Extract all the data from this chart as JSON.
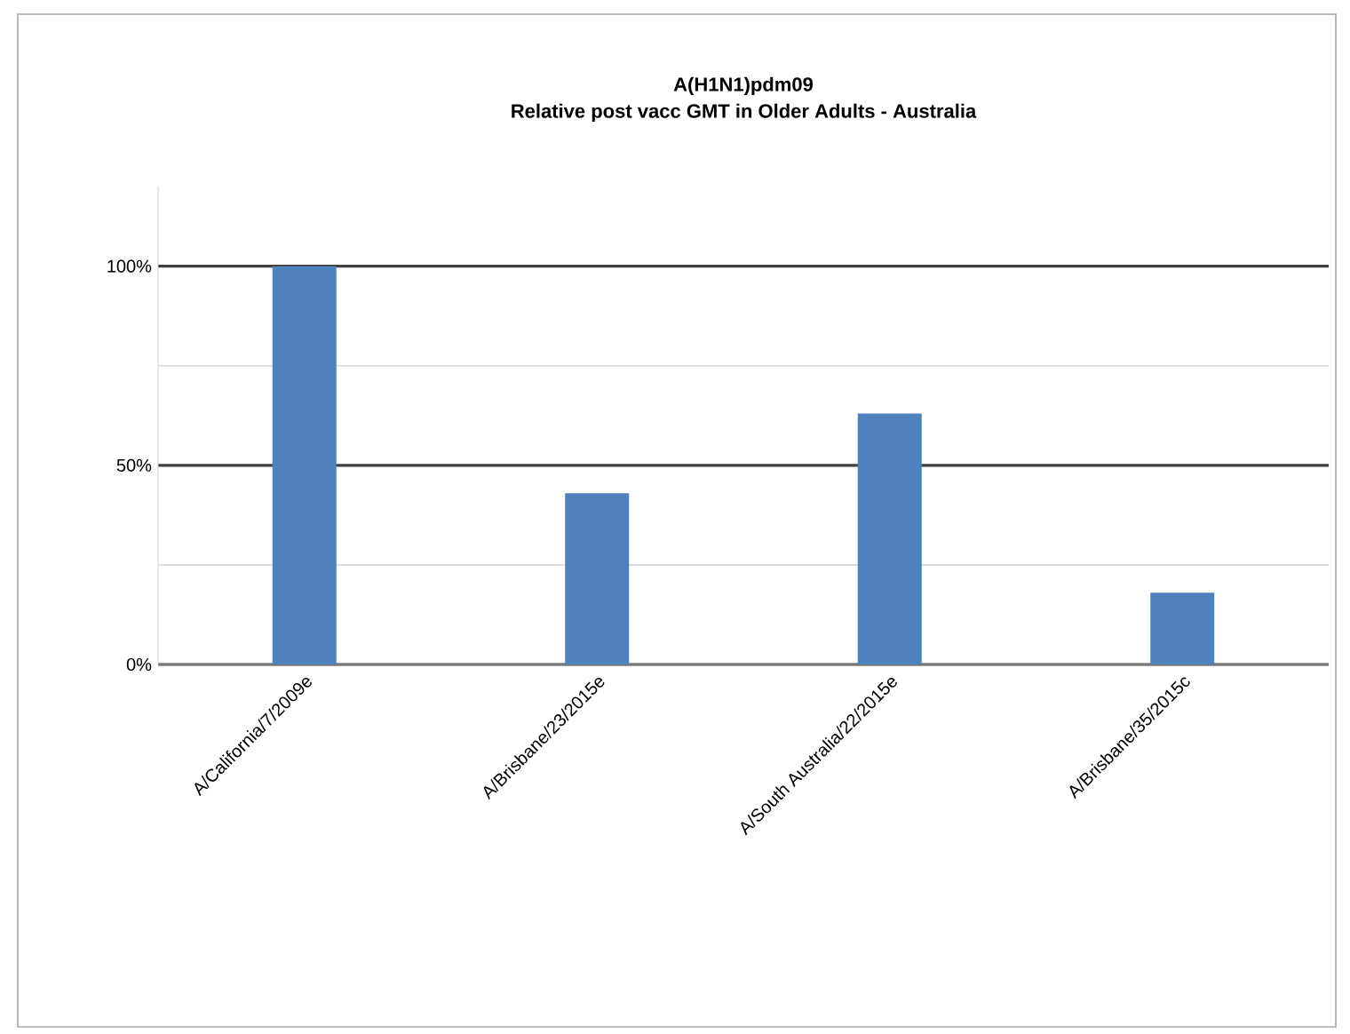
{
  "chart_data": {
    "type": "bar",
    "title": "A(H1N1)pdm09\nRelative post vacc GMT in Older Adults - Australia",
    "categories": [
      "A/California/7/2009e",
      "A/Brisbane/23/2015e",
      "A/South Australia/22/2015e",
      "A/Brisbane/35/2015c"
    ],
    "values": [
      100,
      43,
      63,
      18
    ],
    "color": "#4f81bd",
    "ylim": [
      0,
      120
    ],
    "yticks": [
      {
        "value": 0,
        "label": "0%"
      },
      {
        "value": 25,
        "label": null
      },
      {
        "value": 50,
        "label": "50%"
      },
      {
        "value": 75,
        "label": null
      },
      {
        "value": 100,
        "label": "100%"
      }
    ],
    "grid": "y"
  }
}
